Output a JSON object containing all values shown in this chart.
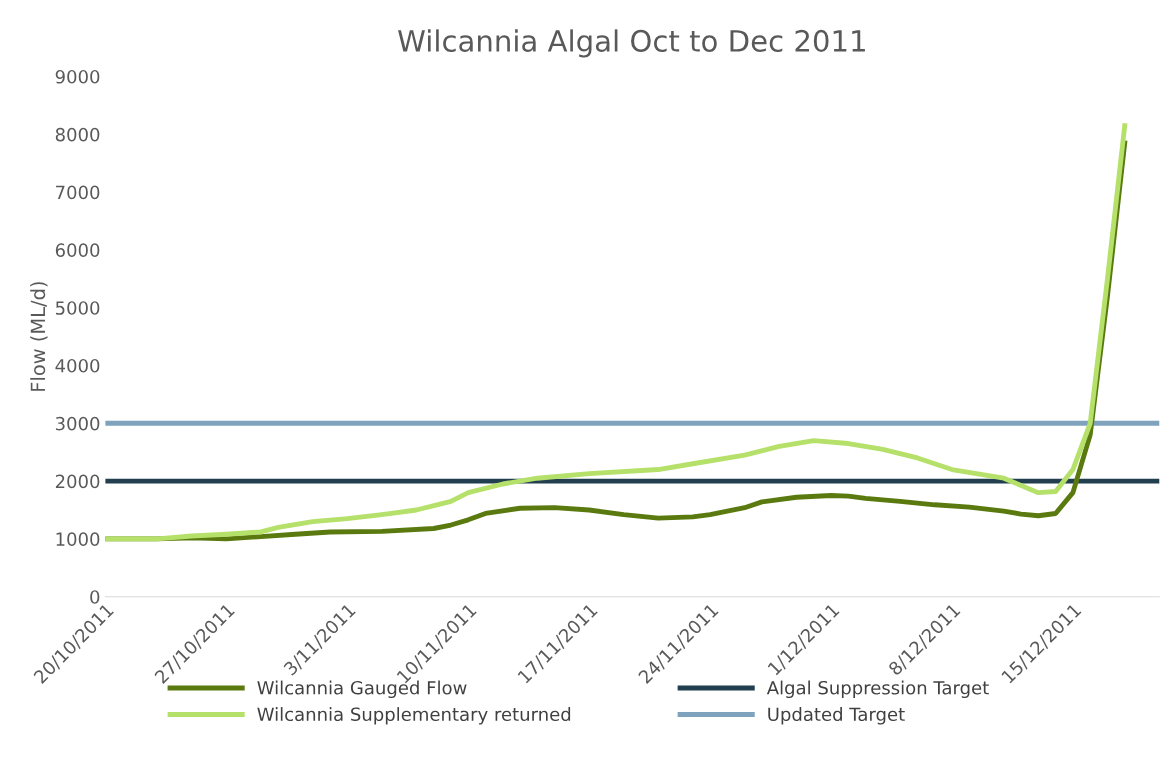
{
  "chart_data": {
    "type": "line",
    "title": "Wilcannia Algal Oct to Dec 2011",
    "ylabel": "Flow (ML/d)",
    "xlim": [
      "2011-10-20",
      "2011-12-20"
    ],
    "xticks": [
      {
        "value": "2011-10-20",
        "label": "20/10/2011"
      },
      {
        "value": "2011-10-27",
        "label": "27/10/2011"
      },
      {
        "value": "2011-11-03",
        "label": "3/11/2011"
      },
      {
        "value": "2011-11-10",
        "label": "10/11/2011"
      },
      {
        "value": "2011-11-17",
        "label": "17/11/2011"
      },
      {
        "value": "2011-11-24",
        "label": "24/11/2011"
      },
      {
        "value": "2011-12-01",
        "label": "1/12/2011"
      },
      {
        "value": "2011-12-08",
        "label": "8/12/2011"
      },
      {
        "value": "2011-12-15",
        "label": "15/12/2011"
      }
    ],
    "ylim": [
      0,
      9000
    ],
    "yticks": [
      0,
      1000,
      2000,
      3000,
      4000,
      5000,
      6000,
      7000,
      8000,
      9000
    ],
    "grid": false,
    "legend": "bottom",
    "marker": "none",
    "line_style": "solid",
    "series": [
      {
        "name": "Wilcannia Gauged Flow",
        "color": "#5a7a0f",
        "x": [
          "2011-10-20",
          "2011-10-23",
          "2011-10-25",
          "2011-10-27",
          "2011-10-29",
          "2011-10-31",
          "2011-11-02",
          "2011-11-05",
          "2011-11-08",
          "2011-11-09",
          "2011-11-10",
          "2011-11-11",
          "2011-11-13",
          "2011-11-15",
          "2011-11-17",
          "2011-11-19",
          "2011-11-21",
          "2011-11-23",
          "2011-11-24",
          "2011-11-26",
          "2011-11-27",
          "2011-11-29",
          "2011-12-01",
          "2011-12-02",
          "2011-12-03",
          "2011-12-05",
          "2011-12-07",
          "2011-12-09",
          "2011-12-11",
          "2011-12-12",
          "2011-12-13",
          "2011-12-14",
          "2011-12-15",
          "2011-12-16",
          "2011-12-17",
          "2011-12-18"
        ],
        "values": [
          1000,
          1000,
          1020,
          1000,
          1040,
          1080,
          1120,
          1130,
          1180,
          1240,
          1330,
          1440,
          1530,
          1540,
          1500,
          1420,
          1360,
          1380,
          1420,
          1540,
          1640,
          1720,
          1750,
          1740,
          1700,
          1650,
          1590,
          1550,
          1480,
          1430,
          1400,
          1440,
          1800,
          2800,
          5200,
          7850
        ]
      },
      {
        "name": "Wilcannia Supplementary returned",
        "color": "#b5e06a",
        "x": [
          "2011-10-20",
          "2011-10-23",
          "2011-10-25",
          "2011-10-27",
          "2011-10-29",
          "2011-10-30",
          "2011-11-01",
          "2011-11-03",
          "2011-11-05",
          "2011-11-07",
          "2011-11-09",
          "2011-11-10",
          "2011-11-12",
          "2011-11-14",
          "2011-11-17",
          "2011-11-21",
          "2011-11-23",
          "2011-11-26",
          "2011-11-28",
          "2011-11-30",
          "2011-12-02",
          "2011-12-04",
          "2011-12-06",
          "2011-12-08",
          "2011-12-11",
          "2011-12-13",
          "2011-12-14",
          "2011-12-15",
          "2011-12-16",
          "2011-12-17",
          "2011-12-18"
        ],
        "values": [
          1000,
          1000,
          1050,
          1080,
          1120,
          1200,
          1300,
          1350,
          1420,
          1500,
          1650,
          1800,
          1950,
          2050,
          2130,
          2200,
          2300,
          2450,
          2600,
          2700,
          2650,
          2550,
          2400,
          2200,
          2050,
          1800,
          1820,
          2200,
          3000,
          5500,
          8150
        ]
      }
    ],
    "ref_lines": [
      {
        "axis": "y",
        "value": 2000,
        "label": "Algal Suppression Target",
        "color": "#213f4f"
      },
      {
        "axis": "y",
        "value": 3000,
        "label": "Updated Target",
        "color": "#7fa2bd"
      }
    ]
  }
}
